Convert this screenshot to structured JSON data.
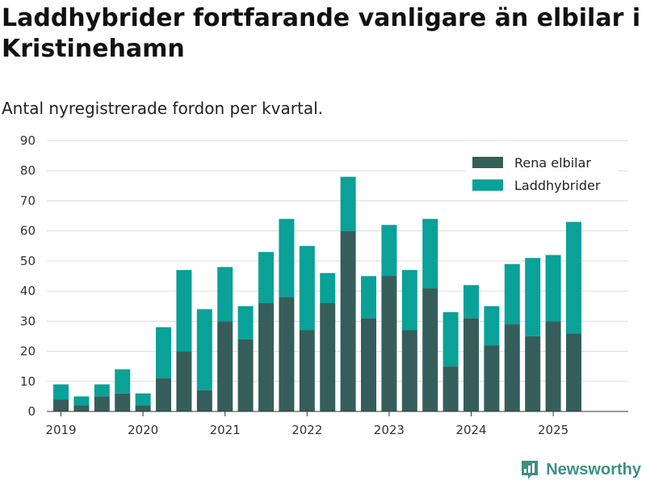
{
  "title": "Laddhybrider fortfarande vanligare än elbilar i Kristinehamn",
  "subtitle": "Antal nyregistrerade fordon per kvartal.",
  "brand": "Newsworthy",
  "colors": {
    "rena_elbilar": "#355e5a",
    "laddhybrider": "#0aa198",
    "grid": "#dddddd",
    "axis": "#333333"
  },
  "chart_data": {
    "type": "bar",
    "stacked": true,
    "categories": [
      "2019 Q1",
      "2019 Q2",
      "2019 Q3",
      "2019 Q4",
      "2020 Q1",
      "2020 Q2",
      "2020 Q3",
      "2020 Q4",
      "2021 Q1",
      "2021 Q2",
      "2021 Q3",
      "2021 Q4",
      "2022 Q1",
      "2022 Q2",
      "2022 Q3",
      "2022 Q4",
      "2023 Q1",
      "2023 Q2",
      "2023 Q3",
      "2023 Q4",
      "2024 Q1",
      "2024 Q2",
      "2024 Q3",
      "2024 Q4",
      "2025 Q1",
      "2025 Q2",
      "2025 Q3"
    ],
    "series": [
      {
        "name": "Rena elbilar",
        "values": [
          4,
          2,
          5,
          6,
          2,
          11,
          20,
          7,
          30,
          24,
          36,
          38,
          27,
          36,
          60,
          31,
          45,
          27,
          41,
          15,
          31,
          22,
          29,
          25,
          30,
          26,
          0
        ]
      },
      {
        "name": "Laddhybrider",
        "values": [
          5,
          3,
          4,
          8,
          4,
          17,
          27,
          27,
          18,
          11,
          17,
          26,
          28,
          10,
          18,
          14,
          17,
          20,
          23,
          18,
          11,
          13,
          20,
          26,
          22,
          37,
          0
        ]
      }
    ],
    "x_tick_labels": [
      "2019",
      "2020",
      "2021",
      "2022",
      "2023",
      "2024",
      "2025"
    ],
    "y_tick_labels": [
      "0",
      "10",
      "20",
      "30",
      "40",
      "50",
      "60",
      "70",
      "80",
      "90"
    ],
    "ylim": [
      0,
      90
    ],
    "grid": true,
    "legend_position": "top-right"
  }
}
